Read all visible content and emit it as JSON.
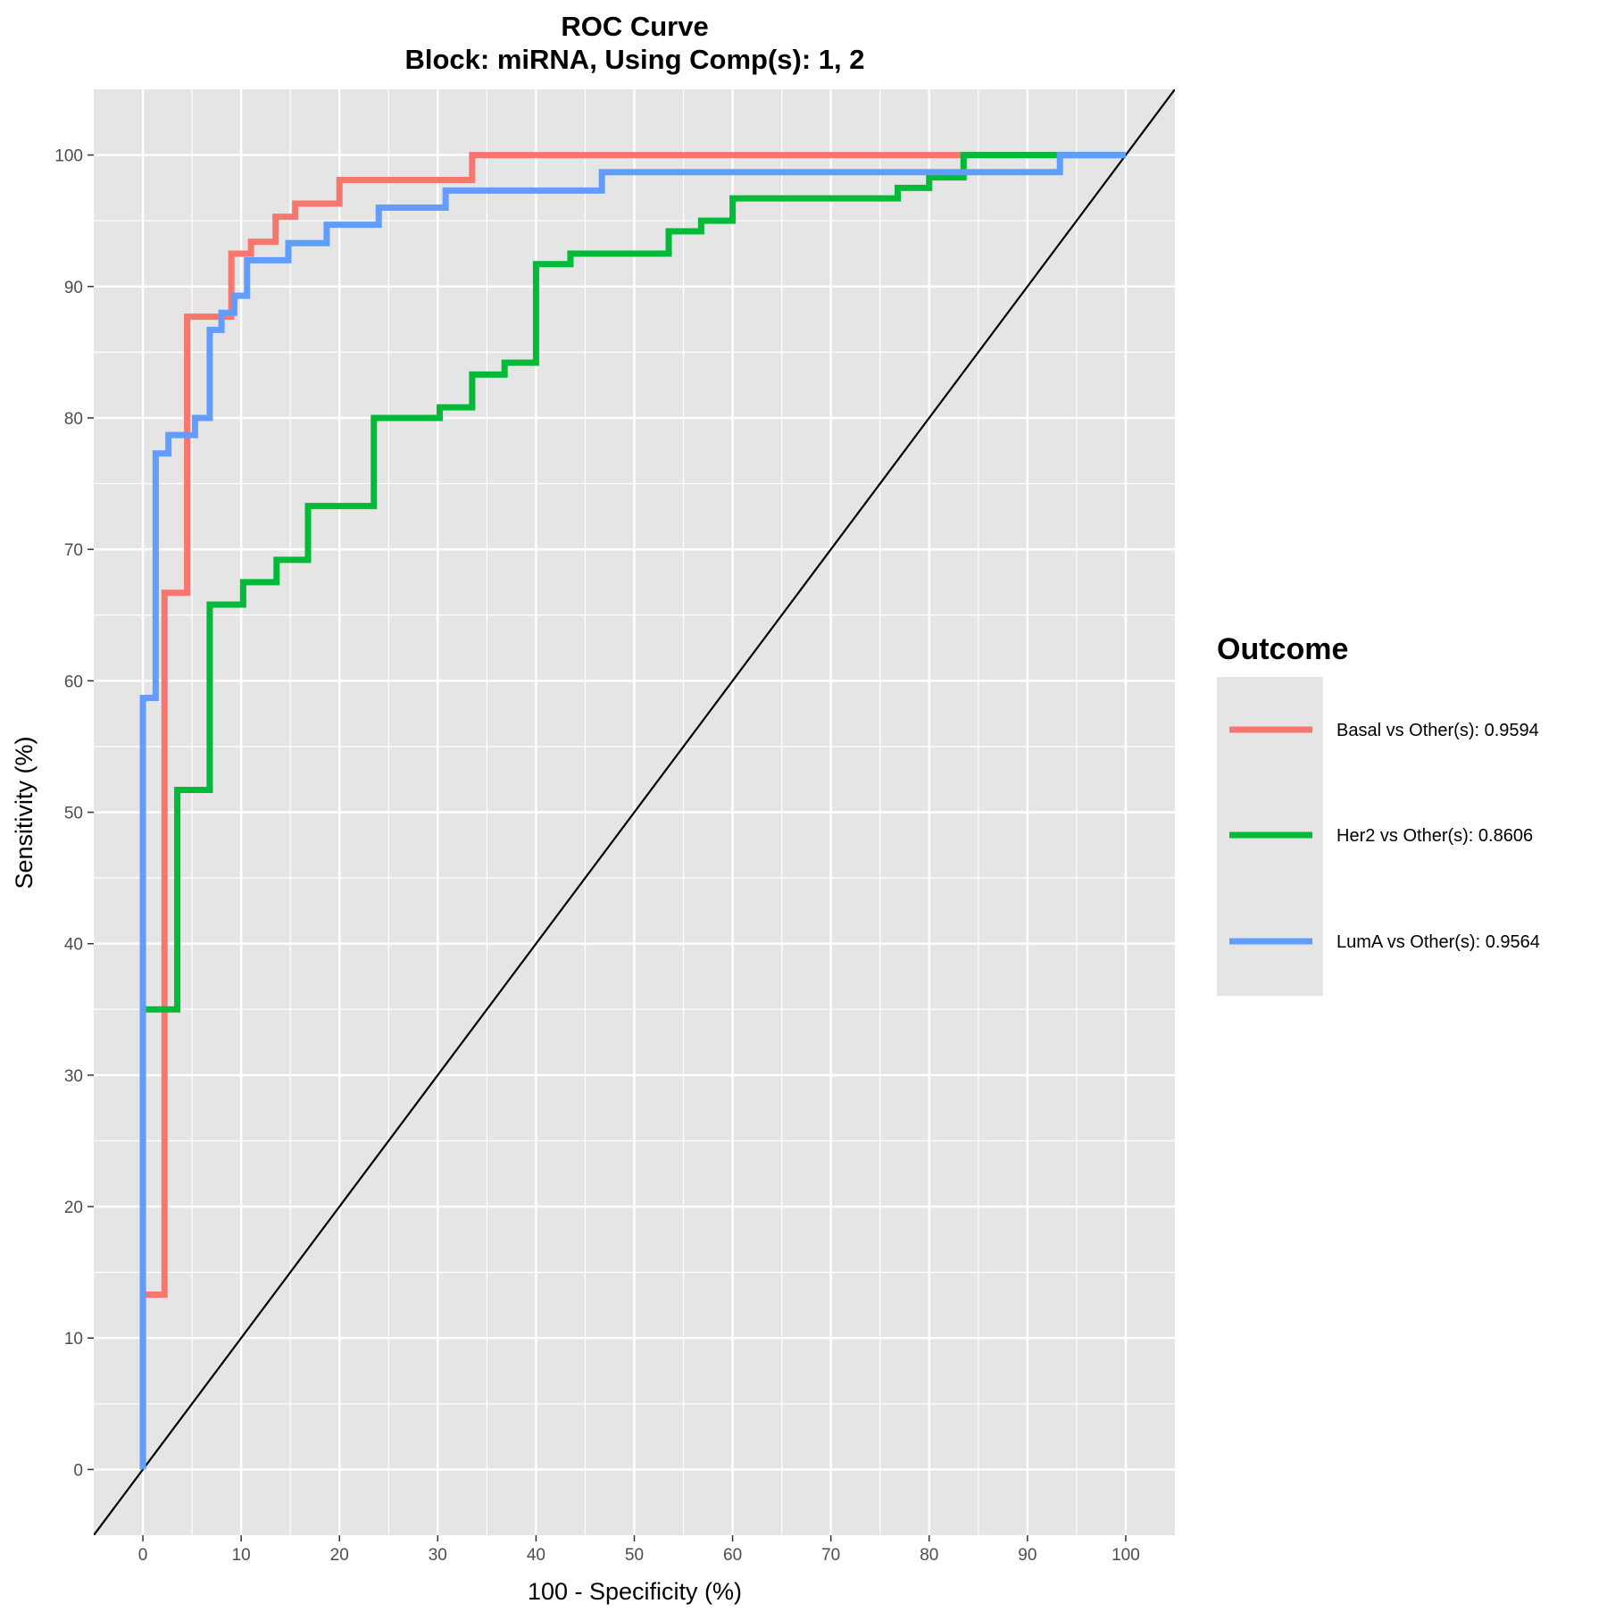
{
  "chart_data": {
    "type": "line",
    "title": "ROC Curve",
    "subtitle": "Block: miRNA, Using Comp(s): 1, 2",
    "xlabel": "100 - Specificity (%)",
    "ylabel": "Sensitivity (%)",
    "xlim": [
      -5,
      105
    ],
    "ylim": [
      -5,
      105
    ],
    "x_ticks": [
      0,
      10,
      20,
      30,
      40,
      50,
      60,
      70,
      80,
      90,
      100
    ],
    "y_ticks": [
      0,
      10,
      20,
      30,
      40,
      50,
      60,
      70,
      80,
      90,
      100
    ],
    "grid": true,
    "legend_position": "right",
    "legend_title": "Outcome",
    "reference_line": {
      "from": [
        0,
        0
      ],
      "to": [
        100,
        100
      ],
      "color": "#000000"
    },
    "series": [
      {
        "name": "Basal vs Other(s): 0.9594",
        "color": "#F8766D",
        "points": [
          [
            0,
            0
          ],
          [
            0,
            13.3
          ],
          [
            2.2,
            13.3
          ],
          [
            2.2,
            66.7
          ],
          [
            4.5,
            66.7
          ],
          [
            4.5,
            87.7
          ],
          [
            9,
            87.7
          ],
          [
            9,
            92.5
          ],
          [
            11,
            92.5
          ],
          [
            11,
            93.4
          ],
          [
            13.5,
            93.4
          ],
          [
            13.5,
            95.3
          ],
          [
            15.5,
            95.3
          ],
          [
            15.5,
            96.3
          ],
          [
            20,
            96.3
          ],
          [
            20,
            98.1
          ],
          [
            33.5,
            98.1
          ],
          [
            33.5,
            100
          ],
          [
            100,
            100
          ]
        ]
      },
      {
        "name": "Her2 vs Other(s): 0.8606",
        "color": "#00BA38",
        "points": [
          [
            0,
            0
          ],
          [
            0,
            35
          ],
          [
            3.5,
            35
          ],
          [
            3.5,
            51.7
          ],
          [
            6.8,
            51.7
          ],
          [
            6.8,
            65.8
          ],
          [
            10.2,
            65.8
          ],
          [
            10.2,
            67.5
          ],
          [
            13.6,
            67.5
          ],
          [
            13.6,
            69.2
          ],
          [
            16.8,
            69.2
          ],
          [
            16.8,
            73.3
          ],
          [
            23.5,
            73.3
          ],
          [
            23.5,
            80
          ],
          [
            30.2,
            80
          ],
          [
            30.2,
            80.8
          ],
          [
            33.5,
            80.8
          ],
          [
            33.5,
            83.3
          ],
          [
            36.8,
            83.3
          ],
          [
            36.8,
            84.2
          ],
          [
            40,
            84.2
          ],
          [
            40,
            91.7
          ],
          [
            43.5,
            91.7
          ],
          [
            43.5,
            92.5
          ],
          [
            53.5,
            92.5
          ],
          [
            53.5,
            94.2
          ],
          [
            56.8,
            94.2
          ],
          [
            56.8,
            95
          ],
          [
            60,
            95
          ],
          [
            60,
            96.7
          ],
          [
            76.8,
            96.7
          ],
          [
            76.8,
            97.5
          ],
          [
            80,
            97.5
          ],
          [
            80,
            98.3
          ],
          [
            83.5,
            98.3
          ],
          [
            83.5,
            100
          ],
          [
            100,
            100
          ]
        ]
      },
      {
        "name": "LumA vs Other(s): 0.9564",
        "color": "#619CFF",
        "points": [
          [
            0,
            0
          ],
          [
            0,
            58.7
          ],
          [
            1.3,
            58.7
          ],
          [
            1.3,
            77.3
          ],
          [
            2.6,
            77.3
          ],
          [
            2.6,
            78.7
          ],
          [
            5.3,
            78.7
          ],
          [
            5.3,
            80
          ],
          [
            6.8,
            80
          ],
          [
            6.8,
            86.7
          ],
          [
            8,
            86.7
          ],
          [
            8,
            88
          ],
          [
            9.3,
            88
          ],
          [
            9.3,
            89.3
          ],
          [
            10.6,
            89.3
          ],
          [
            10.6,
            92
          ],
          [
            14.8,
            92
          ],
          [
            14.8,
            93.3
          ],
          [
            18.7,
            93.3
          ],
          [
            18.7,
            94.7
          ],
          [
            24,
            94.7
          ],
          [
            24,
            96
          ],
          [
            30.8,
            96
          ],
          [
            30.8,
            97.3
          ],
          [
            46.7,
            97.3
          ],
          [
            46.7,
            98.7
          ],
          [
            93.3,
            98.7
          ],
          [
            93.3,
            100
          ],
          [
            100,
            100
          ]
        ]
      }
    ]
  }
}
